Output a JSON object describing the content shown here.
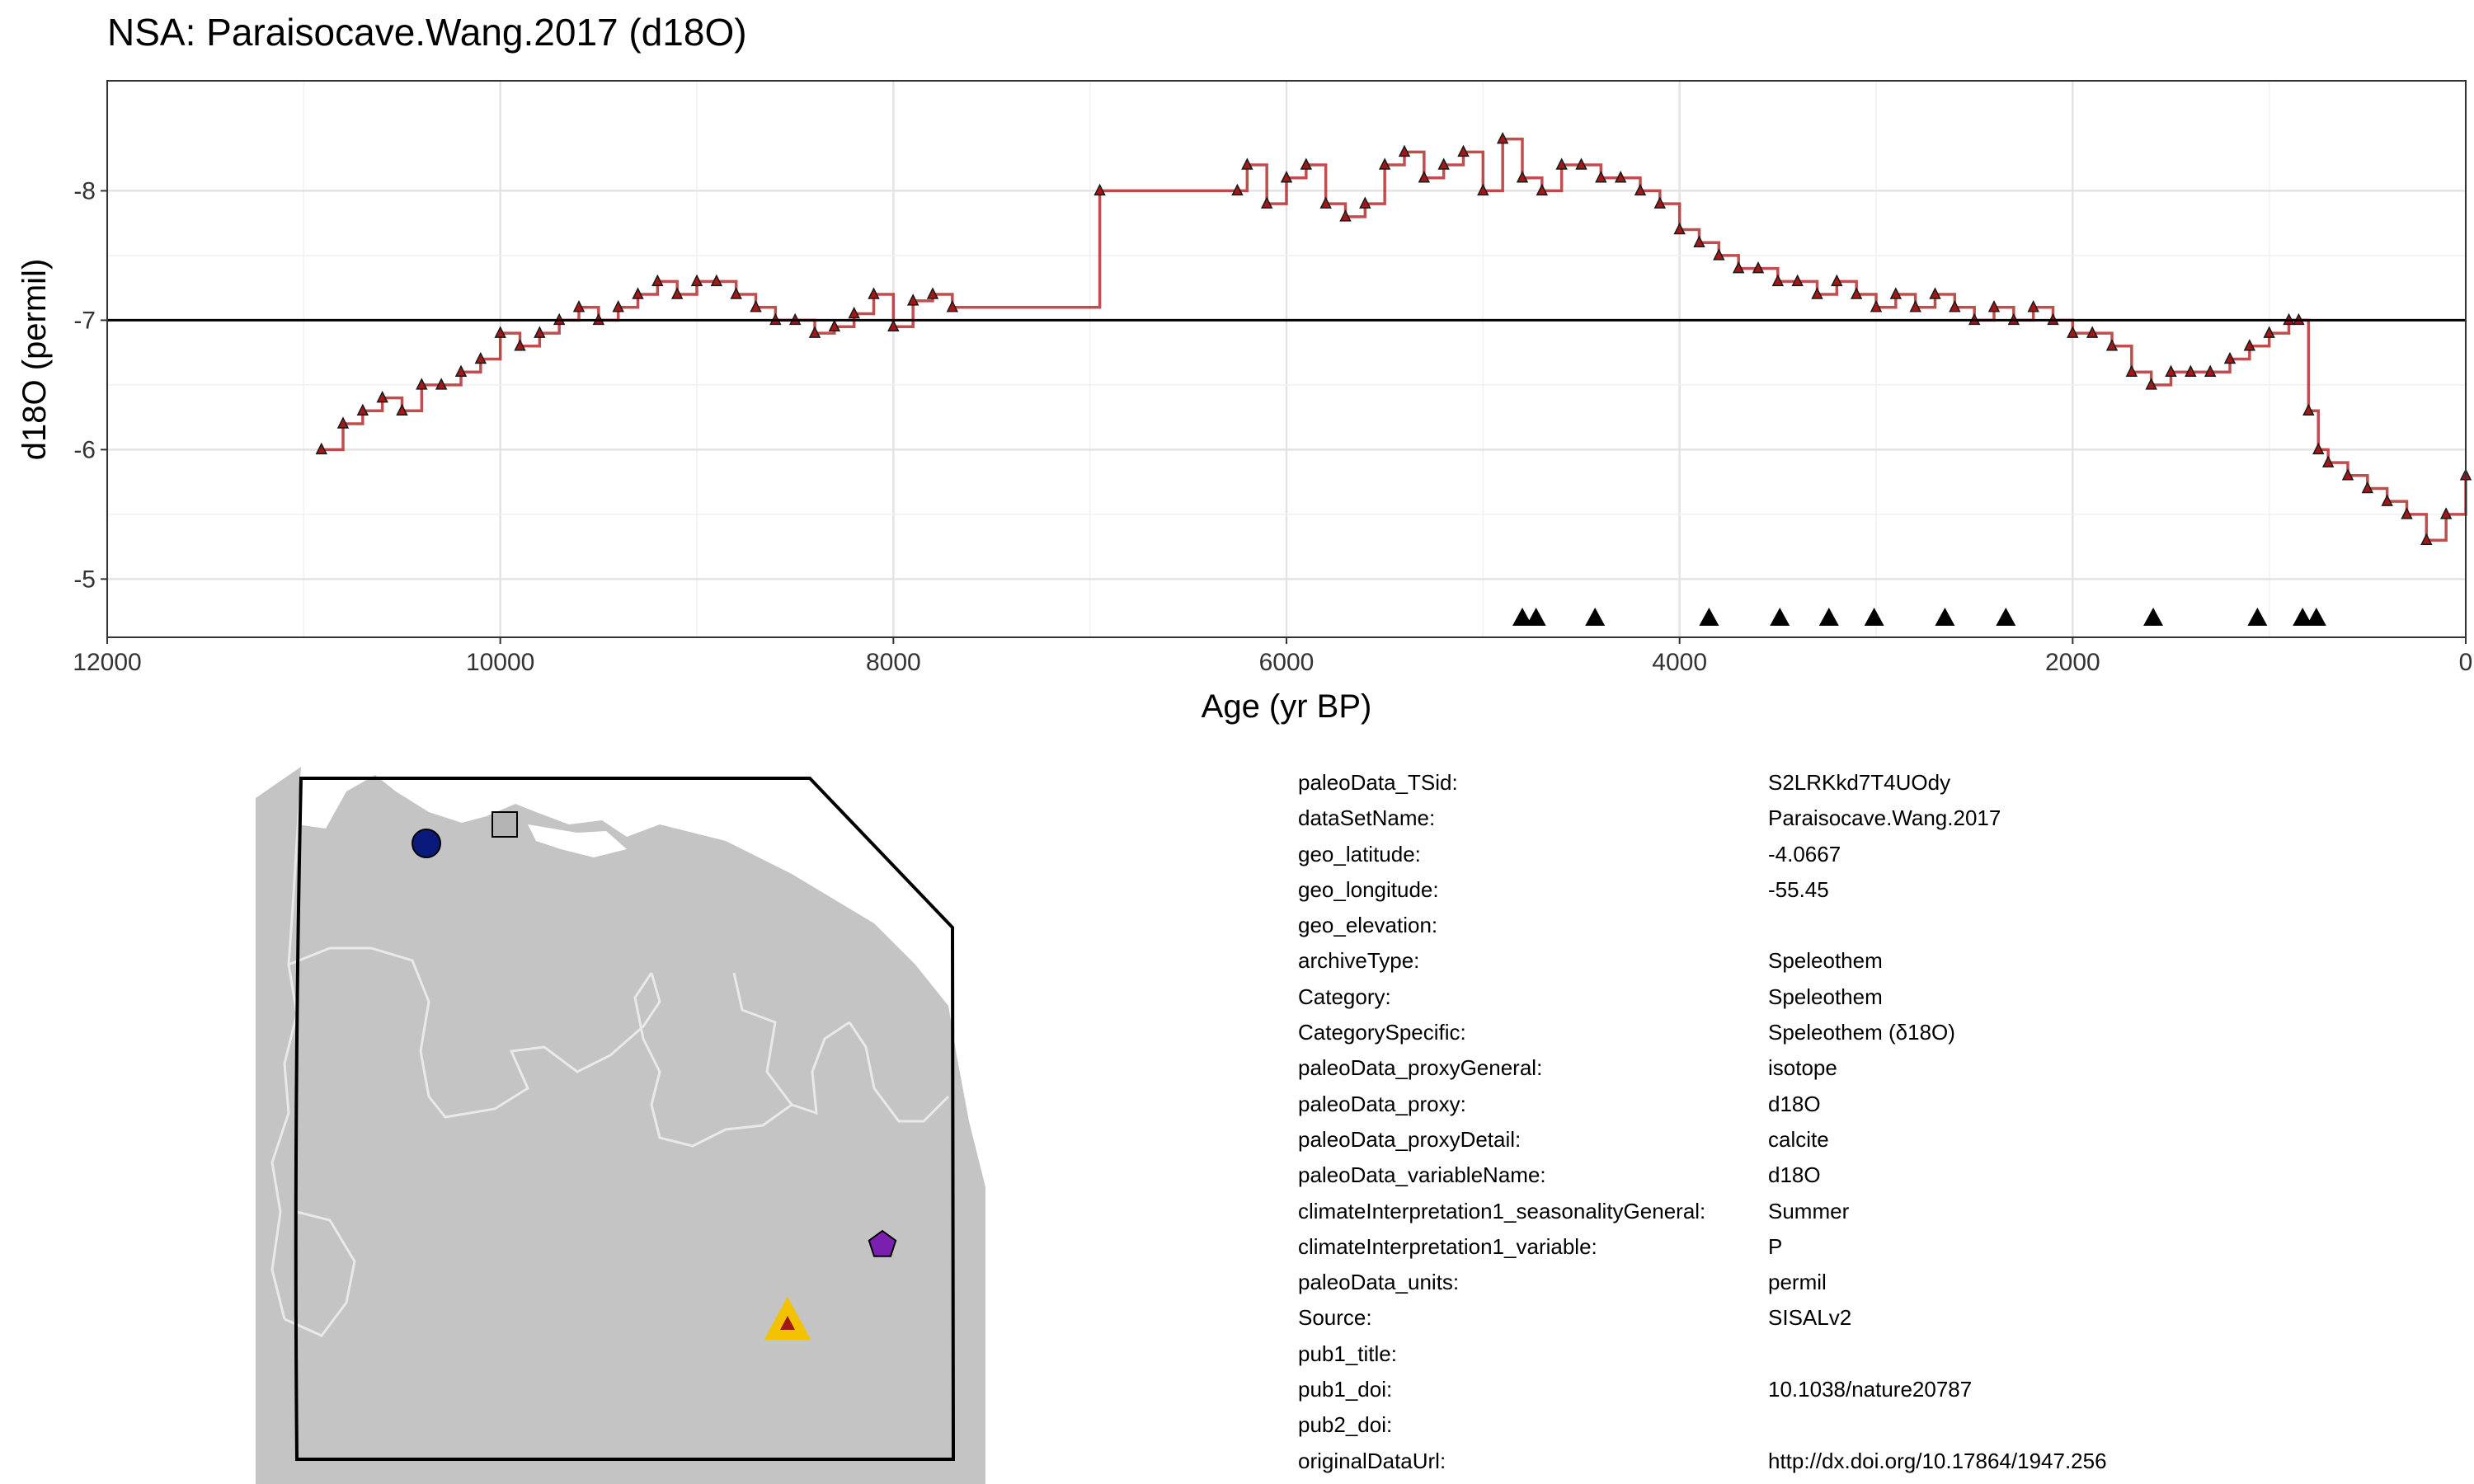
{
  "title": "NSA: Paraisocave.Wang.2017 (d18O)",
  "chart_data": {
    "type": "line",
    "xlabel": "Age (yr BP)",
    "ylabel": "d18O (permil)",
    "xlim": [
      12000,
      0
    ],
    "ylim": [
      -8.85,
      -4.55
    ],
    "y_reversed": true,
    "x_ticks": [
      12000,
      10000,
      8000,
      6000,
      4000,
      2000,
      0
    ],
    "y_ticks": [
      -8,
      -7,
      -6,
      -5
    ],
    "y_tick_labels": [
      "-8",
      "-7",
      "-6",
      "-5"
    ],
    "x_tick_labels": [
      "12000",
      "10000",
      "8000",
      "6000",
      "4000",
      "2000",
      "0"
    ],
    "grid": true,
    "reference_line_y": -7.0,
    "line_color": "#b22222",
    "marker": "triangle",
    "marker_fill": "#a01818",
    "series": [
      {
        "values_x": [
          10910,
          10800,
          10700,
          10600,
          10500,
          10400,
          10300,
          10200,
          10100,
          10000,
          9900,
          9800,
          9700,
          9600,
          9500,
          9400,
          9300,
          9200,
          9100,
          9000,
          8900,
          8800,
          8700,
          8600,
          8500,
          8400,
          8300,
          8200,
          8100,
          8000,
          7900,
          7800,
          7700,
          6950,
          6250,
          6200,
          6100,
          6000,
          5900,
          5800,
          5700,
          5600,
          5500,
          5400,
          5300,
          5200,
          5100,
          5000,
          4900,
          4800,
          4700,
          4600,
          4500,
          4400,
          4300,
          4200,
          4100,
          4000,
          3900,
          3800,
          3700,
          3600,
          3500,
          3400,
          3300,
          3200,
          3100,
          3000,
          2900,
          2800,
          2700,
          2600,
          2500,
          2400,
          2300,
          2200,
          2100,
          2000,
          1900,
          1800,
          1700,
          1600,
          1500,
          1400,
          1300,
          1200,
          1100,
          1000,
          900,
          850,
          800,
          750,
          700,
          600,
          500,
          400,
          300,
          200,
          100,
          0
        ],
        "values_y": [
          -6.0,
          -6.2,
          -6.3,
          -6.4,
          -6.3,
          -6.5,
          -6.5,
          -6.6,
          -6.7,
          -6.9,
          -6.8,
          -6.9,
          -7.0,
          -7.1,
          -7.0,
          -7.1,
          -7.2,
          -7.3,
          -7.2,
          -7.3,
          -7.3,
          -7.2,
          -7.1,
          -7.0,
          -7.0,
          -6.9,
          -6.95,
          -7.05,
          -7.2,
          -6.95,
          -7.15,
          -7.2,
          -7.1,
          -8.0,
          -8.0,
          -8.2,
          -7.9,
          -8.1,
          -8.2,
          -7.9,
          -7.8,
          -7.9,
          -8.2,
          -8.3,
          -8.1,
          -8.2,
          -8.3,
          -8.0,
          -8.4,
          -8.1,
          -8.0,
          -8.2,
          -8.2,
          -8.1,
          -8.1,
          -8.0,
          -7.9,
          -7.7,
          -7.6,
          -7.5,
          -7.4,
          -7.4,
          -7.3,
          -7.3,
          -7.2,
          -7.3,
          -7.2,
          -7.1,
          -7.2,
          -7.1,
          -7.2,
          -7.1,
          -7.0,
          -7.1,
          -7.0,
          -7.1,
          -7.0,
          -6.9,
          -6.9,
          -6.8,
          -6.6,
          -6.5,
          -6.6,
          -6.6,
          -6.6,
          -6.7,
          -6.8,
          -6.9,
          -7.0,
          -7.0,
          -6.3,
          -6.0,
          -5.9,
          -5.8,
          -5.7,
          -5.6,
          -5.5,
          -5.3,
          -5.5,
          -5.8
        ]
      }
    ],
    "chronology_markers_x": [
      4800,
      4730,
      4430,
      3850,
      3490,
      3240,
      3010,
      2650,
      2340,
      1590,
      1060,
      830,
      760
    ]
  },
  "map": {
    "sites": [
      {
        "shape": "circle",
        "color": "#0a1a7a"
      },
      {
        "shape": "square",
        "color": "#b4b4b4"
      },
      {
        "shape": "pentagon",
        "color": "#7a1fb0"
      },
      {
        "shape": "triangle",
        "color": "#f2c200",
        "inner_color": "#a01818"
      }
    ]
  },
  "metadata": [
    {
      "key": "paleoData_TSid:",
      "value": "S2LRKkd7T4UOdy"
    },
    {
      "key": "dataSetName:",
      "value": "Paraisocave.Wang.2017"
    },
    {
      "key": "geo_latitude:",
      "value": "-4.0667"
    },
    {
      "key": "geo_longitude:",
      "value": "-55.45"
    },
    {
      "key": "geo_elevation:",
      "value": ""
    },
    {
      "key": "archiveType:",
      "value": "Speleothem"
    },
    {
      "key": "Category:",
      "value": "Speleothem"
    },
    {
      "key": "CategorySpecific:",
      "value": "Speleothem (δ18O)"
    },
    {
      "key": "paleoData_proxyGeneral:",
      "value": "isotope"
    },
    {
      "key": "paleoData_proxy:",
      "value": "d18O"
    },
    {
      "key": "paleoData_proxyDetail:",
      "value": "calcite"
    },
    {
      "key": "paleoData_variableName:",
      "value": "d18O"
    },
    {
      "key": "climateInterpretation1_seasonalityGeneral:",
      "value": "Summer"
    },
    {
      "key": "climateInterpretation1_variable:",
      "value": "P"
    },
    {
      "key": "paleoData_units:",
      "value": "permil"
    },
    {
      "key": "Source:",
      "value": "SISALv2"
    },
    {
      "key": "pub1_title:",
      "value": ""
    },
    {
      "key": "pub1_doi:",
      "value": "10.1038/nature20787"
    },
    {
      "key": "pub2_doi:",
      "value": ""
    },
    {
      "key": "originalDataUrl:",
      "value": "http://dx.doi.org/10.17864/1947.256"
    }
  ]
}
